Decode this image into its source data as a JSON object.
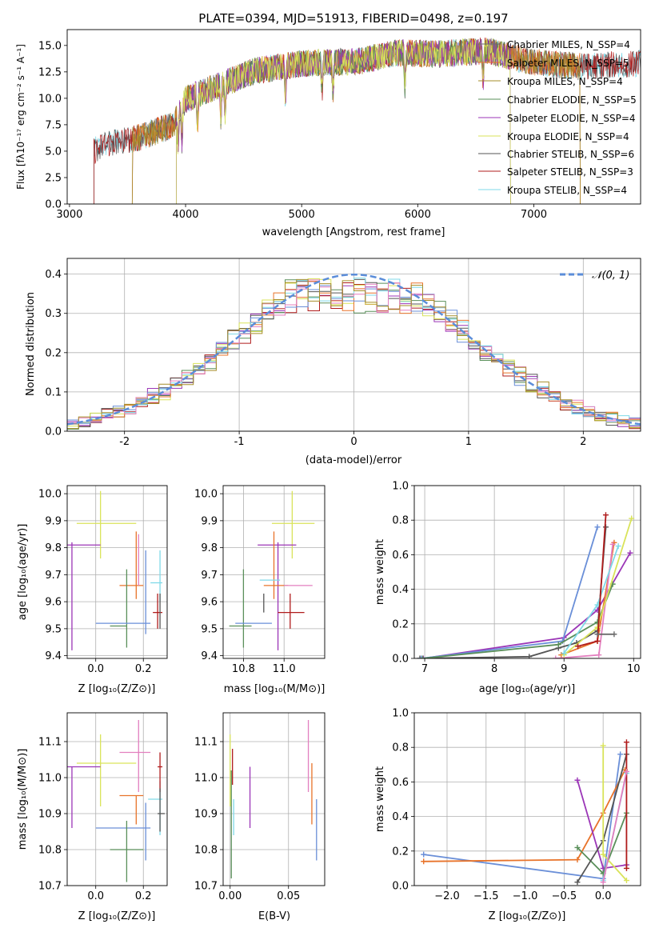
{
  "colors": {
    "c1": "#6b6b6b",
    "c2": "#e8732a",
    "c3": "#a68e2a",
    "c4": "#5a8f5a",
    "c5": "#9b36b7",
    "c6": "#d9e35a",
    "c7": "#555555",
    "c8": "#b01c1c",
    "c9": "#7fd9e8",
    "c10": "#6a8fd8",
    "c11": "#e37fbf"
  },
  "chart_data": [
    {
      "id": "spectrum",
      "type": "line",
      "title": "PLATE=0394, MJD=51913, FIBERID=0498, z=0.197",
      "xlabel": "wavelength [Angstrom, rest frame]",
      "ylabel": "Flux [fλ10⁻¹⁷ erg cm⁻² s⁻¹ A⁻¹]",
      "xlim": [
        2980,
        7920
      ],
      "ylim": [
        0,
        16.5
      ],
      "xticks": [
        3000,
        4000,
        5000,
        6000,
        7000
      ],
      "yticks": [
        0.0,
        2.5,
        5.0,
        7.5,
        10.0,
        12.5,
        15.0
      ],
      "grid": false,
      "legend": "top-right",
      "continuum": {
        "x": [
          3210,
          3300,
          3600,
          3900,
          4000,
          4300,
          4600,
          5000,
          5500,
          5800,
          6200,
          6600,
          7000,
          7400,
          7900
        ],
        "y": [
          5.0,
          5.6,
          6.3,
          7.5,
          9.9,
          11.3,
          12.6,
          13.3,
          13.5,
          14.3,
          14.2,
          14.5,
          13.4,
          13.0,
          13.3
        ]
      },
      "series": [
        {
          "name": "Chabrier MILES, N_SSP=4",
          "color": "#6b6b6b",
          "start": 3540,
          "end": 7400
        },
        {
          "name": "Salpeter MILES, N_SSP=5",
          "color": "#e8732a",
          "start": 3540,
          "end": 7400
        },
        {
          "name": "Kroupa MILES, N_SSP=4",
          "color": "#a68e2a",
          "start": 3540,
          "end": 7400
        },
        {
          "name": "Chabrier ELODIE, N_SSP=5",
          "color": "#5a8f5a",
          "start": 3920,
          "end": 6800
        },
        {
          "name": "Salpeter ELODIE, N_SSP=4",
          "color": "#9b36b7",
          "start": 3920,
          "end": 6800
        },
        {
          "name": "Kroupa ELODIE, N_SSP=4",
          "color": "#d9e35a",
          "start": 3920,
          "end": 6800
        },
        {
          "name": "Chabrier STELIB, N_SSP=6",
          "color": "#555555",
          "start": 3210,
          "end": 7920
        },
        {
          "name": "Salpeter STELIB, N_SSP=3",
          "color": "#b01c1c",
          "start": 3210,
          "end": 7920
        },
        {
          "name": "Kroupa STELIB, N_SSP=4",
          "color": "#7fd9e8",
          "start": 3210,
          "end": 7920
        }
      ]
    },
    {
      "id": "residuals",
      "type": "bar",
      "xlabel": "(data-model)/error",
      "ylabel": "Normed distribution",
      "xlim": [
        -2.5,
        2.5
      ],
      "ylim": [
        0,
        0.44
      ],
      "xticks": [
        -2,
        -1,
        0,
        1,
        2
      ],
      "yticks": [
        0.0,
        0.1,
        0.2,
        0.3,
        0.4
      ],
      "grid": true,
      "legend": "top-right",
      "legend_label": "𝒩(0, 1)",
      "bin_width": 0.1
    },
    {
      "id": "age-z",
      "type": "scatter",
      "xlabel": "Z [log₁₀(Z/Z⊙)]",
      "ylabel": "age  [log₁₀(age/yr)]",
      "xlim": [
        -0.12,
        0.3
      ],
      "ylim": [
        9.39,
        10.03
      ],
      "xticks": [
        "0.0",
        "0.2"
      ],
      "xtick_values": [
        0.0,
        0.2
      ],
      "yticks": [
        "9.4",
        "9.5",
        "9.6",
        "9.7",
        "9.8",
        "9.9",
        "10.0"
      ],
      "ytick_values": [
        9.4,
        9.5,
        9.6,
        9.7,
        9.8,
        9.9,
        10.0
      ],
      "grid": true,
      "points": [
        {
          "x": 0.02,
          "y": 9.89,
          "xerr": [
            0.1,
            0.15
          ],
          "yerr": [
            0.13,
            0.12
          ],
          "color": "#d9e35a"
        },
        {
          "x": -0.1,
          "y": 9.81,
          "xerr": [
            0.02,
            0.12
          ],
          "yerr": [
            0.39,
            0.01
          ],
          "color": "#9b36b7"
        },
        {
          "x": 0.17,
          "y": 9.66,
          "xerr": [
            0.07,
            0.03
          ],
          "yerr": [
            0.05,
            0.2
          ],
          "color": "#e8732a"
        },
        {
          "x": 0.18,
          "y": 9.66,
          "xerr": [
            0.0,
            0.0
          ],
          "yerr": [
            0.0,
            0.19
          ],
          "color": "#e37fbf"
        },
        {
          "x": 0.13,
          "y": 9.51,
          "xerr": [
            0.07,
            0.0
          ],
          "yerr": [
            0.08,
            0.21
          ],
          "color": "#5a8f5a"
        },
        {
          "x": 0.15,
          "y": 9.52,
          "xerr": [
            0.15,
            0.08
          ],
          "yerr": [
            0.0,
            0.0
          ],
          "color": "#6a8fd8"
        },
        {
          "x": 0.21,
          "y": 9.52,
          "xerr": [
            0.0,
            0.0
          ],
          "yerr": [
            0.04,
            0.27
          ],
          "color": "#6a8fd8"
        },
        {
          "x": 0.27,
          "y": 9.67,
          "xerr": [
            0.04,
            0.01
          ],
          "yerr": [
            0.07,
            0.12
          ],
          "color": "#7fd9e8"
        },
        {
          "x": 0.26,
          "y": 9.56,
          "xerr": [
            0.02,
            0.02
          ],
          "yerr": [
            0.06,
            0.07
          ],
          "color": "#b01c1c"
        },
        {
          "x": 0.27,
          "y": 9.56,
          "xerr": [
            0.0,
            0.0
          ],
          "yerr": [
            0.06,
            0.07
          ],
          "color": "#555555"
        }
      ]
    },
    {
      "id": "age-mass",
      "type": "scatter",
      "xlabel": "mass [log₁₀(M/M⊙)]",
      "xlim": [
        10.7,
        11.2
      ],
      "ylim": [
        9.39,
        10.03
      ],
      "xticks": [
        "10.8",
        "11.0"
      ],
      "xtick_values": [
        10.8,
        11.0
      ],
      "yticks": [
        "9.4",
        "9.5",
        "9.6",
        "9.7",
        "9.8",
        "9.9",
        "10.0"
      ],
      "ytick_values": [
        9.4,
        9.5,
        9.6,
        9.7,
        9.8,
        9.9,
        10.0
      ],
      "grid": true,
      "points": [
        {
          "x": 11.04,
          "y": 9.89,
          "xerr": [
            0.1,
            0.11
          ],
          "yerr": [
            0.13,
            0.12
          ],
          "color": "#d9e35a"
        },
        {
          "x": 10.97,
          "y": 9.81,
          "xerr": [
            0.1,
            0.09
          ],
          "yerr": [
            0.39,
            0.01
          ],
          "color": "#9b36b7"
        },
        {
          "x": 10.95,
          "y": 9.66,
          "xerr": [
            0.05,
            0.07
          ],
          "yerr": [
            0.05,
            0.2
          ],
          "color": "#e8732a"
        },
        {
          "x": 11.07,
          "y": 9.66,
          "xerr": [
            0.07,
            0.07
          ],
          "yerr": [
            0.0,
            0.0
          ],
          "color": "#e37fbf"
        },
        {
          "x": 10.94,
          "y": 9.68,
          "xerr": [
            0.06,
            0.04
          ],
          "yerr": [
            0.0,
            0.0
          ],
          "color": "#7fd9e8"
        },
        {
          "x": 10.8,
          "y": 9.51,
          "xerr": [
            0.07,
            0.04
          ],
          "yerr": [
            0.08,
            0.21
          ],
          "color": "#5a8f5a"
        },
        {
          "x": 10.86,
          "y": 9.52,
          "xerr": [
            0.1,
            0.08
          ],
          "yerr": [
            0.0,
            0.0
          ],
          "color": "#6a8fd8"
        },
        {
          "x": 11.03,
          "y": 9.56,
          "xerr": [
            0.06,
            0.07
          ],
          "yerr": [
            0.06,
            0.07
          ],
          "color": "#b01c1c"
        },
        {
          "x": 10.9,
          "y": 9.56,
          "xerr": [
            0.0,
            0.0
          ],
          "yerr": [
            0.0,
            0.07
          ],
          "color": "#555555"
        }
      ]
    },
    {
      "id": "weight-age",
      "type": "line",
      "xlabel": "age  [log₁₀(age/yr)]",
      "ylabel": "mass weight",
      "xlim": [
        6.85,
        10.1
      ],
      "ylim": [
        0,
        1.0
      ],
      "xticks": [
        "7",
        "8",
        "9",
        "10"
      ],
      "xtick_values": [
        7,
        8,
        9,
        10
      ],
      "yticks": [
        "0.0",
        "0.2",
        "0.4",
        "0.6",
        "0.8",
        "1.0"
      ],
      "ytick_values": [
        0.0,
        0.2,
        0.4,
        0.6,
        0.8,
        1.0
      ],
      "grid": true,
      "series": [
        {
          "color": "#9b36b7",
          "x": [
            6.98,
            9.0,
            9.48,
            9.95
          ],
          "y": [
            0.0,
            0.12,
            0.28,
            0.61
          ]
        },
        {
          "color": "#555555",
          "x": [
            6.93,
            8.5,
            8.92,
            9.18,
            9.48,
            9.6
          ],
          "y": [
            0.0,
            0.01,
            0.06,
            0.09,
            0.16,
            0.76
          ]
        },
        {
          "color": "#6a8fd8",
          "x": [
            6.95,
            8.98,
            9.48
          ],
          "y": [
            0.0,
            0.1,
            0.76
          ]
        },
        {
          "color": "#5a8f5a",
          "x": [
            6.97,
            8.92,
            9.48,
            9.7
          ],
          "y": [
            0.0,
            0.08,
            0.21,
            0.43
          ]
        },
        {
          "color": "#e8732a",
          "x": [
            8.96,
            9.48,
            9.72
          ],
          "y": [
            0.02,
            0.1,
            0.67
          ]
        },
        {
          "color": "#e37fbf",
          "x": [
            8.88,
            9.5,
            9.7
          ],
          "y": [
            0.0,
            0.02,
            0.66
          ]
        },
        {
          "color": "#d9e35a",
          "x": [
            9.0,
            9.48,
            9.97
          ],
          "y": [
            0.02,
            0.18,
            0.81
          ]
        },
        {
          "color": "#7fd9e8",
          "x": [
            9.0,
            9.48,
            9.78
          ],
          "y": [
            0.03,
            0.31,
            0.65
          ]
        },
        {
          "color": "#b01c1c",
          "x": [
            9.2,
            9.48,
            9.6
          ],
          "y": [
            0.07,
            0.1,
            0.83
          ]
        },
        {
          "color": "#6b6b6b",
          "x": [
            9.48,
            9.72
          ],
          "y": [
            0.14,
            0.14
          ]
        }
      ]
    },
    {
      "id": "mass-z",
      "type": "scatter",
      "xlabel": "Z [log₁₀(Z/Z⊙)]",
      "ylabel": "mass [log₁₀(M/M⊙)]",
      "xlim": [
        -0.12,
        0.3
      ],
      "ylim": [
        10.7,
        11.18
      ],
      "xticks": [
        "0.0",
        "0.2"
      ],
      "xtick_values": [
        0.0,
        0.2
      ],
      "yticks": [
        "10.7",
        "10.8",
        "10.9",
        "11.0",
        "11.1"
      ],
      "ytick_values": [
        10.7,
        10.8,
        10.9,
        11.0,
        11.1
      ],
      "grid": true,
      "points": [
        {
          "x": 0.02,
          "y": 11.04,
          "xerr": [
            0.1,
            0.15
          ],
          "yerr": [
            0.12,
            0.08
          ],
          "color": "#d9e35a"
        },
        {
          "x": -0.1,
          "y": 11.03,
          "xerr": [
            0.02,
            0.12
          ],
          "yerr": [
            0.17,
            0.0
          ],
          "color": "#9b36b7"
        },
        {
          "x": 0.18,
          "y": 11.07,
          "xerr": [
            0.08,
            0.05
          ],
          "yerr": [
            0.11,
            0.09
          ],
          "color": "#e37fbf"
        },
        {
          "x": 0.17,
          "y": 10.95,
          "xerr": [
            0.07,
            0.03
          ],
          "yerr": [
            0.08,
            0.0
          ],
          "color": "#e8732a"
        },
        {
          "x": 0.27,
          "y": 10.94,
          "xerr": [
            0.05,
            0.01
          ],
          "yerr": [
            0.1,
            0.05
          ],
          "color": "#7fd9e8"
        },
        {
          "x": 0.27,
          "y": 11.03,
          "xerr": [
            0.01,
            0.01
          ],
          "yerr": [
            0.07,
            0.04
          ],
          "color": "#b01c1c"
        },
        {
          "x": 0.27,
          "y": 10.9,
          "xerr": [
            0.01,
            0.02
          ],
          "yerr": [
            0.05,
            0.07
          ],
          "color": "#555555"
        },
        {
          "x": 0.15,
          "y": 10.86,
          "xerr": [
            0.15,
            0.08
          ],
          "yerr": [
            0.0,
            0.0
          ],
          "color": "#6a8fd8"
        },
        {
          "x": 0.21,
          "y": 10.86,
          "xerr": [
            0.0,
            0.0
          ],
          "yerr": [
            0.09,
            0.07
          ],
          "color": "#6a8fd8"
        },
        {
          "x": 0.13,
          "y": 10.8,
          "xerr": [
            0.07,
            0.07
          ],
          "yerr": [
            0.09,
            0.08
          ],
          "color": "#5a8f5a"
        }
      ]
    },
    {
      "id": "mass-ebv",
      "type": "scatter",
      "xlabel": "E(B-V)",
      "xlim": [
        -0.006,
        0.081
      ],
      "ylim": [
        10.7,
        11.18
      ],
      "xticks": [
        "0.00",
        "0.05"
      ],
      "xtick_values": [
        0.0,
        0.05
      ],
      "yticks": [
        "10.7",
        "10.8",
        "10.9",
        "11.0",
        "11.1"
      ],
      "ytick_values": [
        10.7,
        10.8,
        10.9,
        11.0,
        11.1
      ],
      "grid": true,
      "points": [
        {
          "x": 0.0,
          "y": 11.04,
          "xerr": [
            0,
            0
          ],
          "yerr": [
            0.12,
            0.08
          ],
          "color": "#d9e35a"
        },
        {
          "x": 0.001,
          "y": 10.96,
          "xerr": [
            0,
            0
          ],
          "yerr": [
            0.24,
            0.06
          ],
          "color": "#5a8f5a"
        },
        {
          "x": 0.002,
          "y": 11.0,
          "xerr": [
            0,
            0
          ],
          "yerr": [
            0.02,
            0.08
          ],
          "color": "#b01c1c"
        },
        {
          "x": 0.003,
          "y": 10.9,
          "xerr": [
            0,
            0
          ],
          "yerr": [
            0.06,
            0.04
          ],
          "color": "#7fd9e8"
        },
        {
          "x": 0.017,
          "y": 10.95,
          "xerr": [
            0,
            0
          ],
          "yerr": [
            0.09,
            0.08
          ],
          "color": "#9b36b7"
        },
        {
          "x": 0.067,
          "y": 11.06,
          "xerr": [
            0,
            0
          ],
          "yerr": [
            0.1,
            0.1
          ],
          "color": "#e37fbf"
        },
        {
          "x": 0.07,
          "y": 10.96,
          "xerr": [
            0,
            0
          ],
          "yerr": [
            0.09,
            0.08
          ],
          "color": "#e8732a"
        },
        {
          "x": 0.074,
          "y": 10.86,
          "xerr": [
            0,
            0
          ],
          "yerr": [
            0.09,
            0.08
          ],
          "color": "#6a8fd8"
        }
      ]
    },
    {
      "id": "weight-z",
      "type": "line",
      "xlabel": "Z [log₁₀(Z/Z⊙)]",
      "ylabel": "mass weight",
      "xlim": [
        -2.42,
        0.48
      ],
      "ylim": [
        0,
        1.0
      ],
      "xticks": [
        "−2.0",
        "−1.5",
        "−1.0",
        "−0.5",
        "0.0"
      ],
      "xtick_values": [
        -2.0,
        -1.5,
        -1.0,
        -0.5,
        0.0
      ],
      "yticks": [
        "0.0",
        "0.2",
        "0.4",
        "0.6",
        "0.8",
        "1.0"
      ],
      "ytick_values": [
        0.0,
        0.2,
        0.4,
        0.6,
        0.8,
        1.0
      ],
      "grid": true,
      "series": [
        {
          "color": "#6a8fd8",
          "x": [
            -2.3,
            0.0,
            0.22
          ],
          "y": [
            0.18,
            0.04,
            0.76
          ]
        },
        {
          "color": "#e8732a",
          "x": [
            -2.3,
            -0.33,
            0.0,
            0.28
          ],
          "y": [
            0.14,
            0.15,
            0.42,
            0.67
          ]
        },
        {
          "color": "#9b36b7",
          "x": [
            -0.33,
            0.0,
            0.3
          ],
          "y": [
            0.61,
            0.1,
            0.12
          ]
        },
        {
          "color": "#5a8f5a",
          "x": [
            -0.33,
            0.0,
            0.3
          ],
          "y": [
            0.22,
            0.07,
            0.42
          ]
        },
        {
          "color": "#555555",
          "x": [
            -0.33,
            0.0,
            0.3
          ],
          "y": [
            0.02,
            0.26,
            0.76
          ]
        },
        {
          "color": "#d9e35a",
          "x": [
            0.0,
            0.0,
            0.3
          ],
          "y": [
            0.81,
            0.18,
            0.03
          ]
        },
        {
          "color": "#7fd9e8",
          "x": [
            0.0,
            0.3
          ],
          "y": [
            0.03,
            0.65
          ]
        },
        {
          "color": "#b01c1c",
          "x": [
            0.3,
            0.3
          ],
          "y": [
            0.1,
            0.83
          ]
        },
        {
          "color": "#e37fbf",
          "x": [
            0.0,
            0.3
          ],
          "y": [
            0.02,
            0.66
          ]
        }
      ]
    }
  ]
}
